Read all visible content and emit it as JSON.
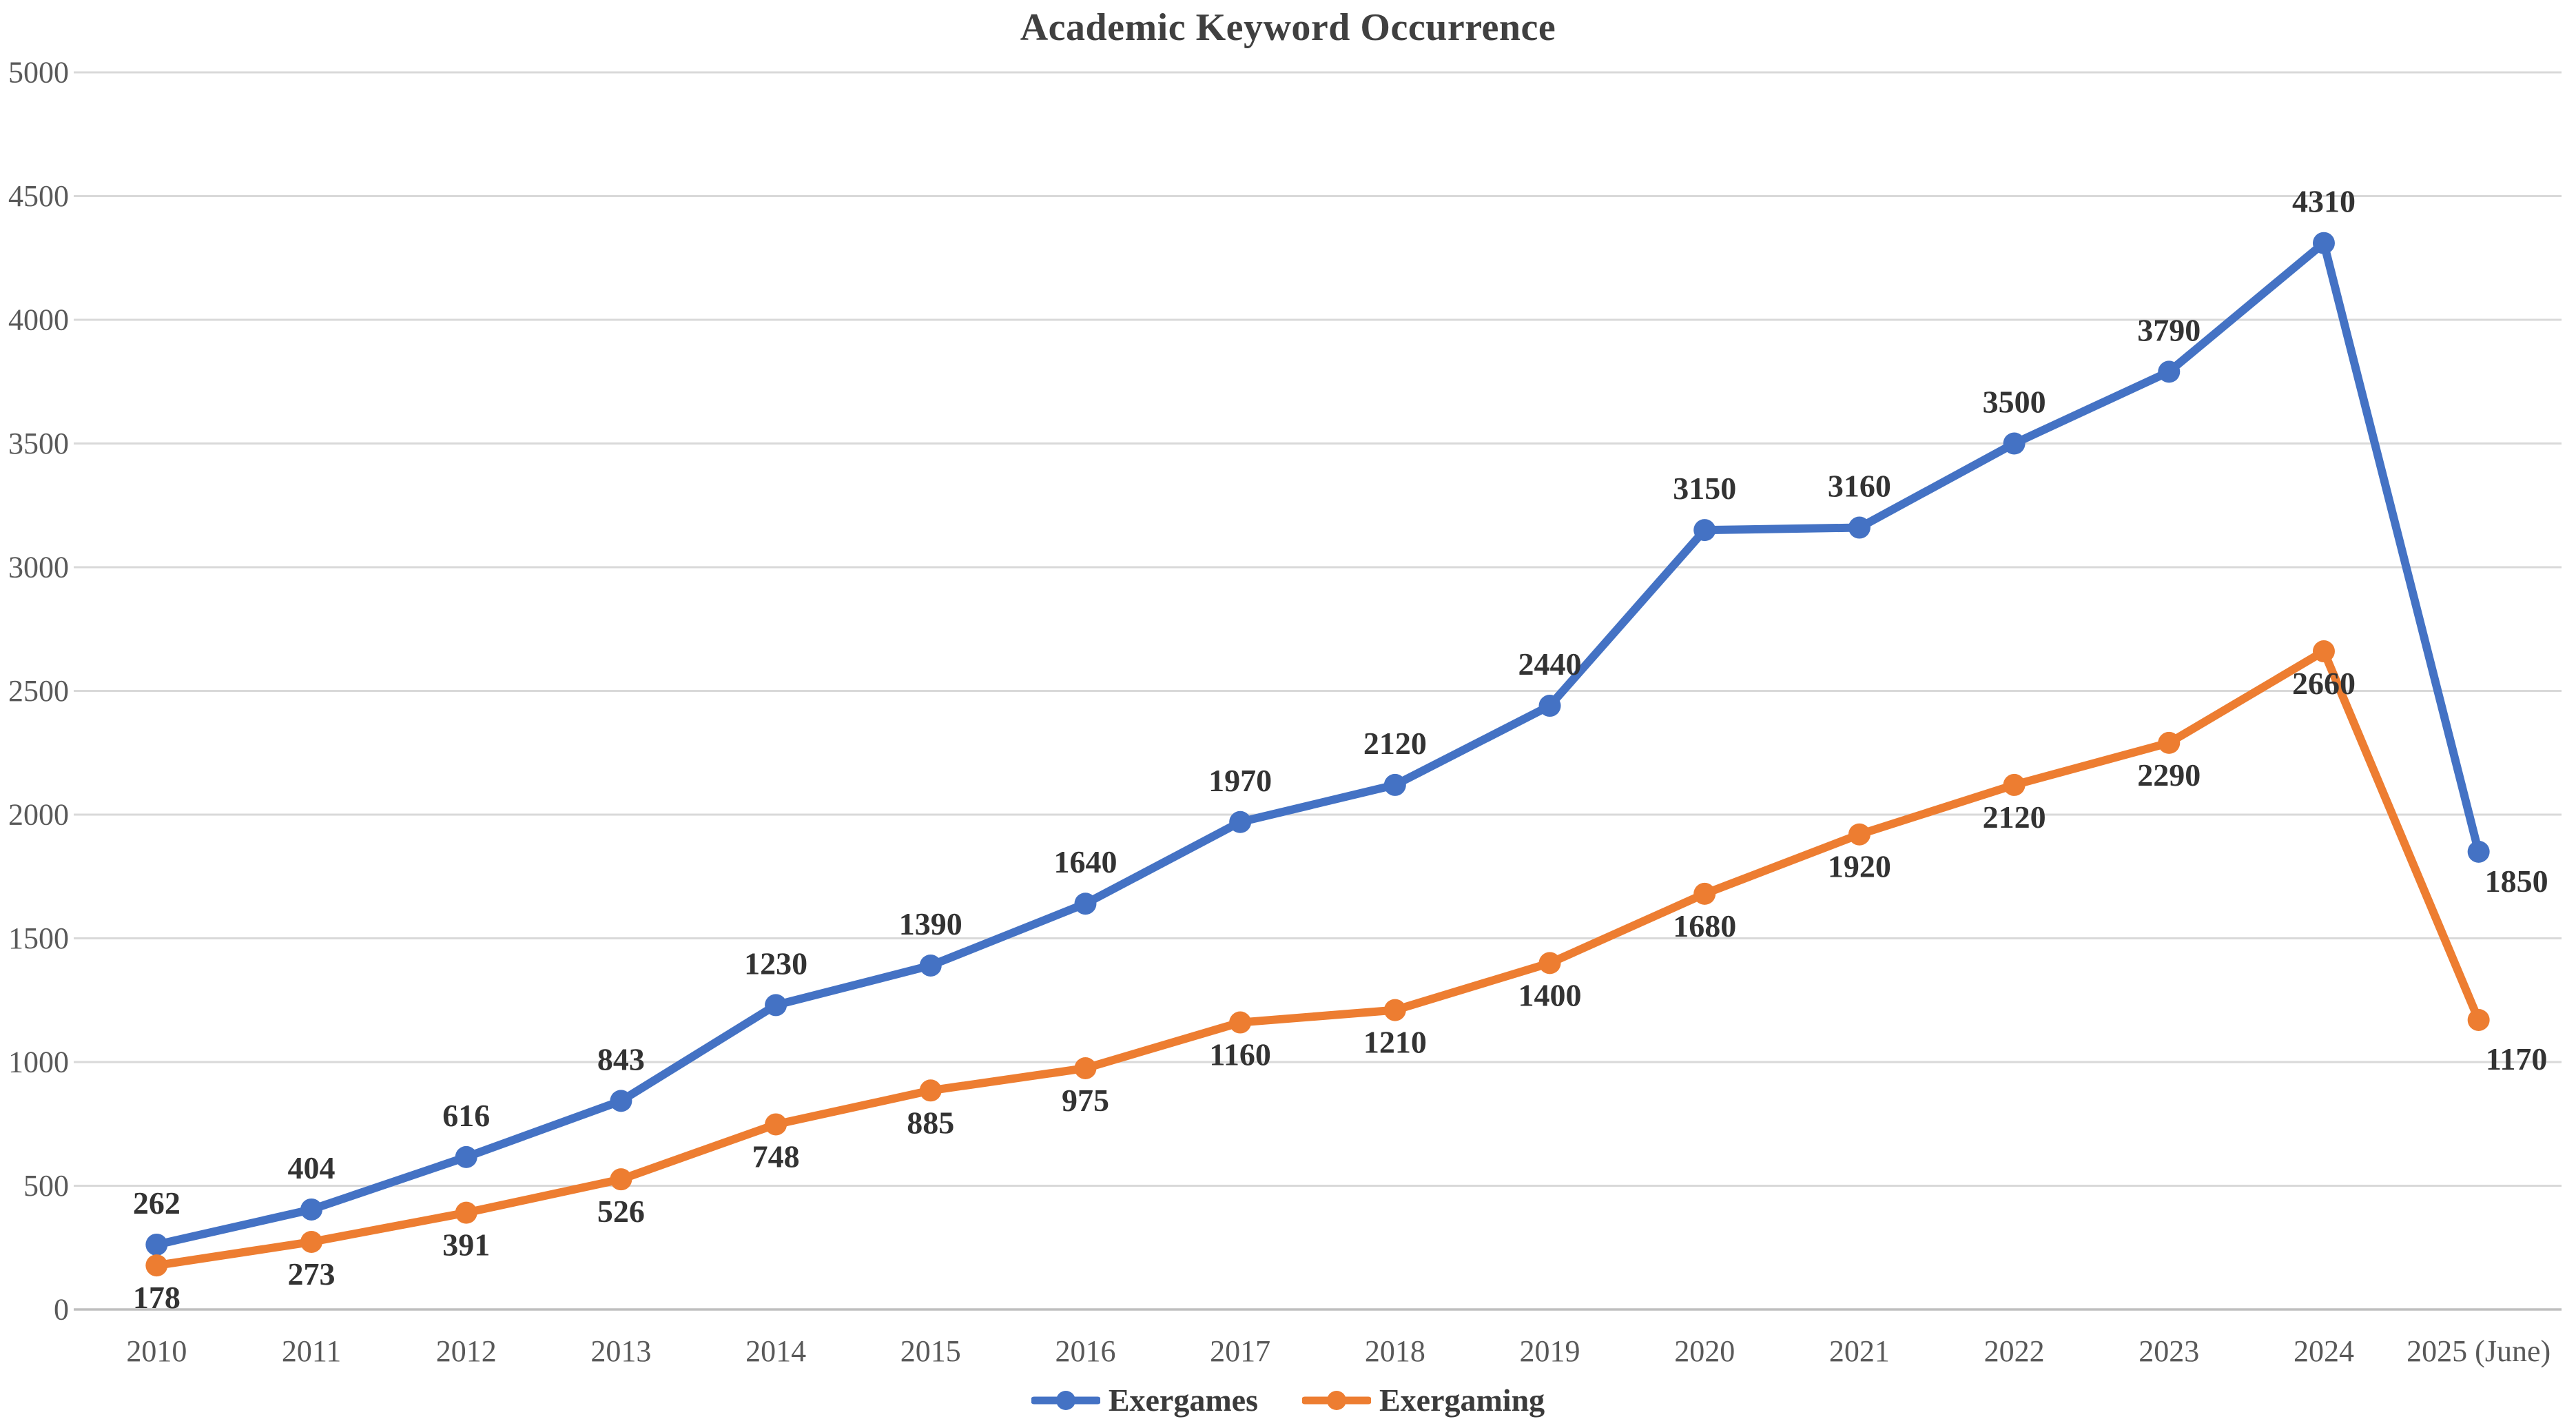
{
  "chart_data": {
    "type": "line",
    "title": "Academic Keyword Occurrence",
    "categories": [
      "2010",
      "2011",
      "2012",
      "2013",
      "2014",
      "2015",
      "2016",
      "2017",
      "2018",
      "2019",
      "2020",
      "2021",
      "2022",
      "2023",
      "2024",
      "2025 (June)"
    ],
    "series": [
      {
        "name": "Exergames",
        "color": "#4472C4",
        "label_position": "above",
        "values": [
          262,
          404,
          616,
          843,
          1230,
          1390,
          1640,
          1970,
          2120,
          2440,
          3150,
          3160,
          3500,
          3790,
          4310,
          1850
        ]
      },
      {
        "name": "Exergaming",
        "color": "#ED7D31",
        "label_position": "below",
        "values": [
          178,
          273,
          391,
          526,
          748,
          885,
          975,
          1160,
          1210,
          1400,
          1680,
          1920,
          2120,
          2290,
          2660,
          1170
        ]
      }
    ],
    "ylim": [
      0,
      5000
    ],
    "ytick_step": 500,
    "yticks": [
      0,
      500,
      1000,
      1500,
      2000,
      2500,
      3000,
      3500,
      4000,
      4500,
      5000
    ],
    "grid": true,
    "legend_position": "bottom",
    "styles": {
      "background": "#FFFFFF",
      "gridline_color": "#D9D9D9",
      "axis_line_color": "#BFBFBF",
      "tick_label_color": "#595959",
      "data_label_color": "#333333",
      "title_color": "#404040"
    }
  }
}
